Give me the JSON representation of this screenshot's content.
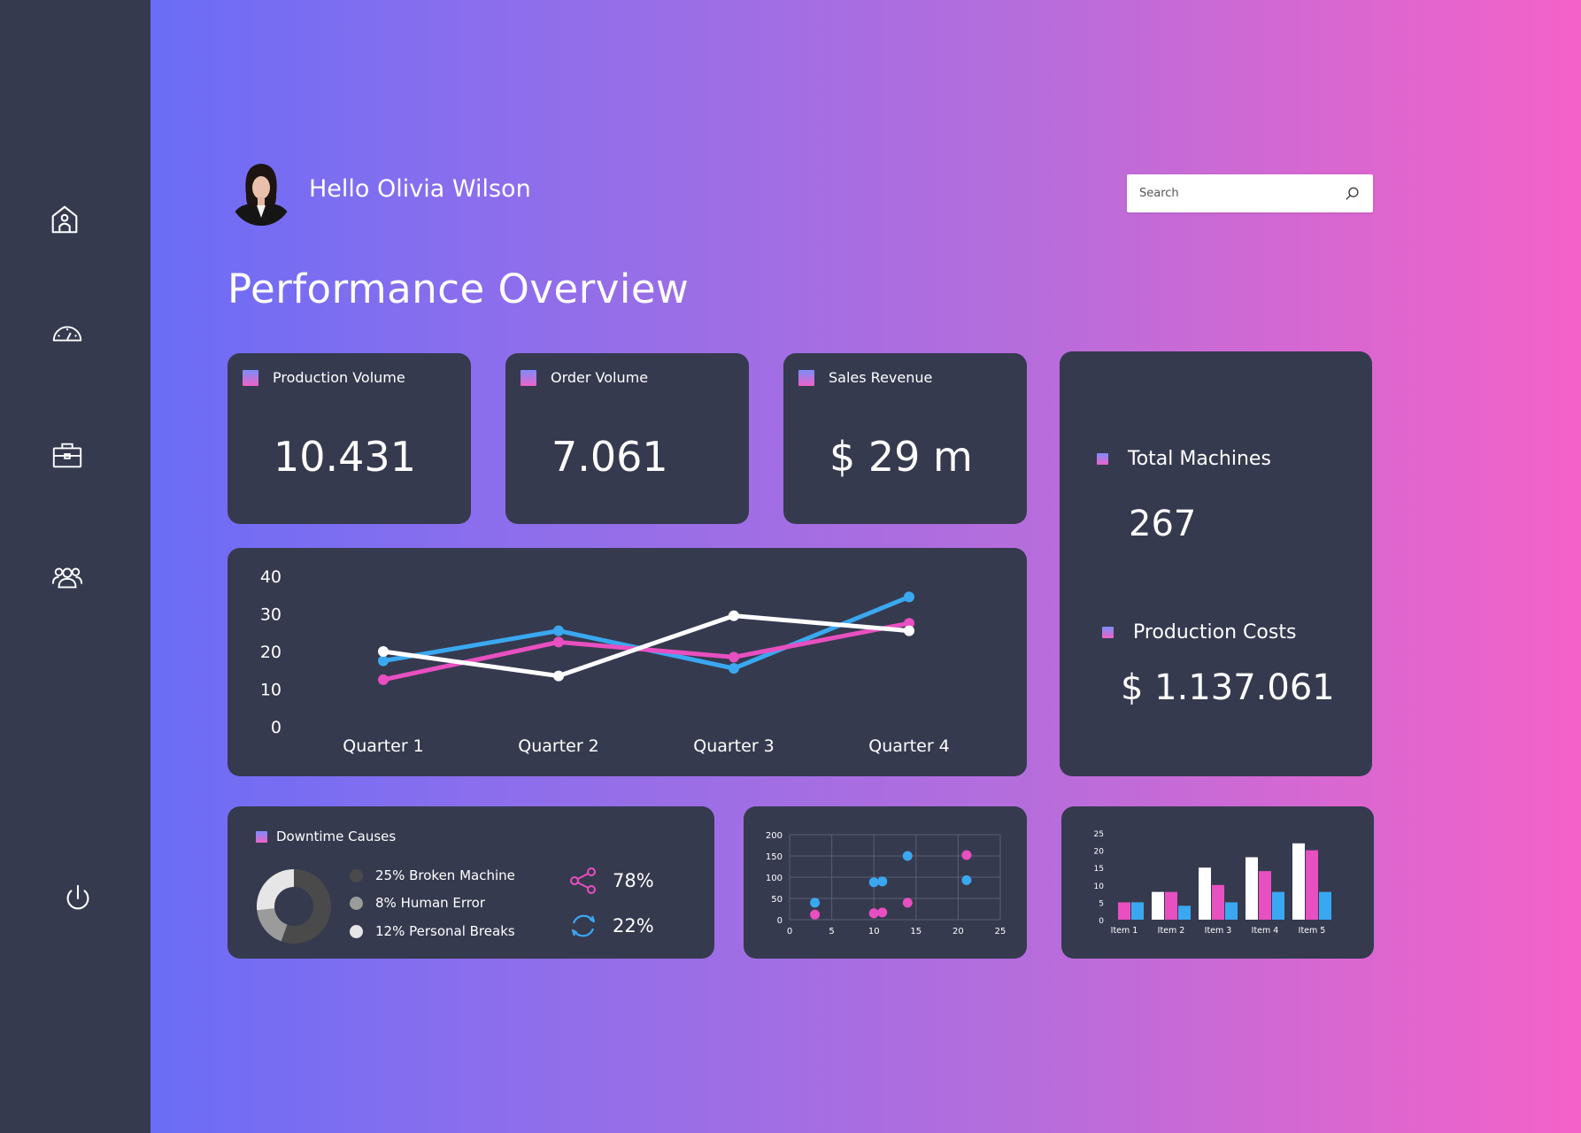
{
  "user": {
    "greeting": "Hello Olivia Wilson"
  },
  "search": {
    "placeholder": "Search"
  },
  "page": {
    "title": "Performance Overview"
  },
  "sidebar": {
    "items": [
      {
        "icon": "home-icon"
      },
      {
        "icon": "speedometer-icon"
      },
      {
        "icon": "briefcase-icon"
      },
      {
        "icon": "users-icon"
      }
    ],
    "bottom": {
      "icon": "power-icon"
    }
  },
  "stats": [
    {
      "label": "Production Volume",
      "value": "10.431"
    },
    {
      "label": "Order Volume",
      "value": "7.061"
    },
    {
      "label": "Sales Revenue",
      "value": "$ 29 m"
    }
  ],
  "machines": {
    "total_label": "Total Machines",
    "total_value": "267",
    "costs_label": "Production Costs",
    "costs_value": "$ 1.137.061"
  },
  "downtime": {
    "title": "Downtime Causes",
    "legend": [
      {
        "label": "25% Broken Machine",
        "color": "#4a4a4a"
      },
      {
        "label": "8% Human Error",
        "color": "#9b9b9b"
      },
      {
        "label": "12% Personal Breaks",
        "color": "#e6e6e6"
      }
    ],
    "metrics": [
      {
        "icon": "share-icon",
        "value": "78%",
        "color": "#e84fc0"
      },
      {
        "icon": "refresh-icon",
        "value": "22%",
        "color": "#3aa8f0"
      }
    ]
  },
  "chart_data": [
    {
      "type": "line",
      "categories": [
        "Quarter 1",
        "Quarter 2",
        "Quarter 3",
        "Quarter 4"
      ],
      "ylim": [
        0,
        40
      ],
      "yticks": [
        0,
        10,
        20,
        30,
        40
      ],
      "series": [
        {
          "color": "#3aa8f0",
          "values": [
            17.5,
            25.5,
            15.5,
            34.5
          ]
        },
        {
          "color": "#e84fc0",
          "values": [
            12.5,
            22.5,
            18.5,
            27.5
          ]
        },
        {
          "color": "#ffffff",
          "values": [
            20,
            13.5,
            29.5,
            25.5
          ]
        }
      ]
    },
    {
      "type": "scatter",
      "xlim": [
        0,
        25
      ],
      "ylim": [
        0,
        200
      ],
      "xticks": [
        0,
        5,
        10,
        15,
        20,
        25
      ],
      "yticks": [
        0,
        50,
        100,
        150,
        200
      ],
      "grid": true,
      "series": [
        {
          "color": "#3aa8f0",
          "points": [
            [
              3,
              40
            ],
            [
              10,
              88
            ],
            [
              11,
              90
            ],
            [
              14,
              150
            ],
            [
              21,
              93
            ]
          ]
        },
        {
          "color": "#e84fc0",
          "points": [
            [
              3,
              12
            ],
            [
              10,
              15
            ],
            [
              11,
              17
            ],
            [
              14,
              40
            ],
            [
              21,
              152
            ]
          ]
        }
      ]
    },
    {
      "type": "bar",
      "categories": [
        "Item 1",
        "Item 2",
        "Item 3",
        "Item 4",
        "Item 5"
      ],
      "ylim": [
        0,
        25
      ],
      "yticks": [
        0,
        5,
        10,
        15,
        20,
        25
      ],
      "series": [
        {
          "color": "#ffffff",
          "values": [
            0,
            8,
            15,
            18,
            22
          ]
        },
        {
          "color": "#e84fc0",
          "values": [
            5,
            8,
            10,
            14,
            20
          ]
        },
        {
          "color": "#3aa8f0",
          "values": [
            5,
            4,
            5,
            8,
            8
          ]
        }
      ]
    }
  ],
  "donut": [
    {
      "value": 25,
      "color": "#4a4a4a"
    },
    {
      "value": 8,
      "color": "#9b9b9b"
    },
    {
      "value": 12,
      "color": "#e6e6e6"
    }
  ]
}
